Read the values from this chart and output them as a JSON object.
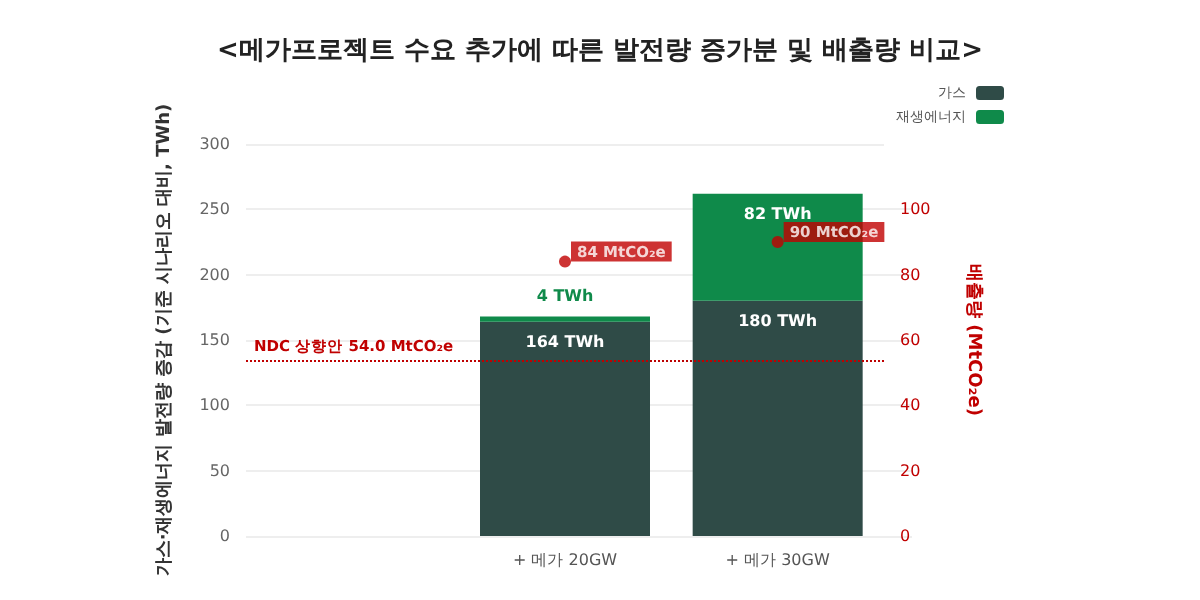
{
  "chart_data": {
    "type": "bar",
    "title": "<메가프로젝트 수요 추가에 따른 발전량 증가분 및 배출량 비교>",
    "categories": [
      null,
      "+ 메가 20GW",
      "+ 메가 30GW"
    ],
    "stacked": true,
    "series": [
      {
        "name": "가스",
        "color": "#2f4b47",
        "values": [
          null,
          164,
          180
        ],
        "value_labels": [
          null,
          "164 TWh",
          "180 TWh"
        ]
      },
      {
        "name": "재생에너지",
        "color": "#0f8a4a",
        "values": [
          null,
          4,
          82
        ],
        "value_labels": [
          null,
          "4 TWh",
          "82 TWh"
        ]
      },
      {
        "type": "scatter",
        "axis": "y2",
        "color": "#c00000",
        "values": [
          null,
          84,
          90
        ],
        "value_labels": [
          null,
          "84 MtCO₂e",
          "90 MtCO₂e"
        ]
      }
    ],
    "ylabel": "가스·재생에너지 발전량 증감 (기준 시나리오 대비, TWh)",
    "y2label": "배출량 (MtCO₂e)",
    "ylim": [
      0,
      300
    ],
    "yticks": [
      0,
      50,
      100,
      150,
      200,
      250,
      300
    ],
    "y2lim": [
      0,
      120
    ],
    "y2ticks": [
      0,
      20,
      40,
      60,
      80,
      100
    ],
    "ref_lines": [
      {
        "axis": "y2",
        "value": 54.0,
        "label": "NDC 상향안 54.0 MtCO₂e",
        "color": "#c00000",
        "line_style": "dotted"
      }
    ],
    "grid": "y",
    "legend": "top right",
    "marker": "circle"
  }
}
